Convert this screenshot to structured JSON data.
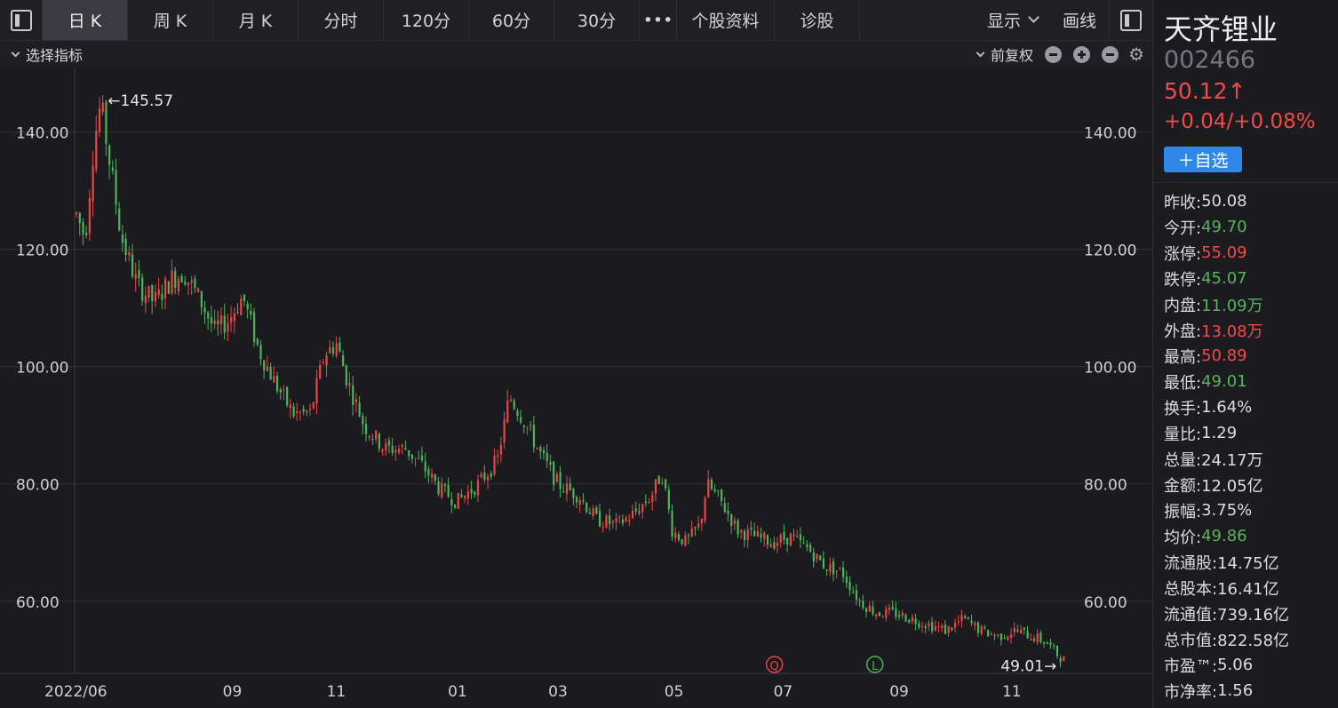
{
  "toolbar": {
    "tabs": [
      {
        "label": "日 K",
        "active": true
      },
      {
        "label": "周 K",
        "active": false
      },
      {
        "label": "月 K",
        "active": false
      },
      {
        "label": "分时",
        "active": false
      },
      {
        "label": "120分",
        "active": false
      },
      {
        "label": "60分",
        "active": false
      },
      {
        "label": "30分",
        "active": false
      },
      {
        "label": "•••",
        "active": false
      },
      {
        "label": "个股资料",
        "active": false
      },
      {
        "label": "诊股",
        "active": false
      }
    ],
    "display_label": "显示",
    "draw_label": "画线"
  },
  "indicator_bar": {
    "select_label": "选择指标",
    "adjust_label": "前复权"
  },
  "stock": {
    "name": "天齐锂业",
    "code": "002466",
    "price": "50.12↑",
    "change": "+0.04/+0.08%",
    "watch_label": "＋自选"
  },
  "info": [
    {
      "label": "昨收:",
      "value": "50.08",
      "tone": "white"
    },
    {
      "label": "今开:",
      "value": "49.70",
      "tone": "green"
    },
    {
      "label": "涨停:",
      "value": "55.09",
      "tone": "red"
    },
    {
      "label": "跌停:",
      "value": "45.07",
      "tone": "green"
    },
    {
      "label": "内盘:",
      "value": "11.09万",
      "tone": "green"
    },
    {
      "label": "外盘:",
      "value": "13.08万",
      "tone": "red"
    },
    {
      "label": "最高:",
      "value": "50.89",
      "tone": "red"
    },
    {
      "label": "最低:",
      "value": "49.01",
      "tone": "green"
    },
    {
      "label": "换手:",
      "value": "1.64%",
      "tone": "white"
    },
    {
      "label": "量比:",
      "value": "1.29",
      "tone": "white"
    },
    {
      "label": "总量:",
      "value": "24.17万",
      "tone": "white"
    },
    {
      "label": "金额:",
      "value": "12.05亿",
      "tone": "white"
    },
    {
      "label": "振幅:",
      "value": "3.75%",
      "tone": "white"
    },
    {
      "label": "均价:",
      "value": "49.86",
      "tone": "green"
    },
    {
      "label": "流通股:",
      "value": "14.75亿",
      "tone": "white"
    },
    {
      "label": "总股本:",
      "value": "16.41亿",
      "tone": "white"
    },
    {
      "label": "流通值:",
      "value": "739.16亿",
      "tone": "white"
    },
    {
      "label": "总市值:",
      "value": "822.58亿",
      "tone": "white"
    },
    {
      "label": "市盈™:",
      "value": "5.06",
      "tone": "white"
    },
    {
      "label": "市净率:",
      "value": "1.56",
      "tone": "white"
    }
  ],
  "colors": {
    "up": "#e84747",
    "down": "#4fb35a",
    "grid": "#2f2f35",
    "axis_text": "#d0d0d4"
  },
  "chart_data": {
    "type": "candlestick",
    "y_ticks": [
      "140.00",
      "120.00",
      "100.00",
      "80.00",
      "60.00"
    ],
    "y_tick_values": [
      140,
      120,
      100,
      80,
      60
    ],
    "ylim": [
      48,
      151
    ],
    "x_ticks": [
      "2022/06",
      "09",
      "11",
      "01",
      "03",
      "05",
      "07",
      "09",
      "11"
    ],
    "x_tick_days": [
      0,
      90,
      150,
      220,
      278,
      345,
      408,
      475,
      540
    ],
    "max_label": "←145.57",
    "max_value": 145.57,
    "max_day": 14,
    "min_label": "49.01→",
    "min_value": 49.01,
    "min_day": 570,
    "markers": [
      {
        "label": "Q",
        "day": 403,
        "color": "#e84747"
      },
      {
        "label": "L",
        "day": 461,
        "color": "#4fb35a"
      }
    ],
    "price_path": [
      [
        0,
        126
      ],
      [
        5,
        122
      ],
      [
        10,
        138
      ],
      [
        14,
        145
      ],
      [
        18,
        137
      ],
      [
        26,
        122
      ],
      [
        35,
        114
      ],
      [
        45,
        111
      ],
      [
        55,
        115
      ],
      [
        62,
        116
      ],
      [
        72,
        111
      ],
      [
        80,
        106
      ],
      [
        88,
        108
      ],
      [
        96,
        112
      ],
      [
        105,
        103
      ],
      [
        115,
        97
      ],
      [
        125,
        92
      ],
      [
        135,
        92
      ],
      [
        143,
        102
      ],
      [
        150,
        104
      ],
      [
        156,
        98
      ],
      [
        166,
        90
      ],
      [
        178,
        86
      ],
      [
        190,
        86
      ],
      [
        200,
        83
      ],
      [
        210,
        79
      ],
      [
        220,
        77
      ],
      [
        232,
        80
      ],
      [
        243,
        84
      ],
      [
        250,
        95
      ],
      [
        258,
        91
      ],
      [
        268,
        85
      ],
      [
        278,
        80
      ],
      [
        290,
        78
      ],
      [
        300,
        74
      ],
      [
        312,
        73
      ],
      [
        322,
        75
      ],
      [
        332,
        78
      ],
      [
        338,
        82
      ],
      [
        344,
        72
      ],
      [
        352,
        70
      ],
      [
        360,
        73
      ],
      [
        364,
        80
      ],
      [
        372,
        77
      ],
      [
        382,
        72
      ],
      [
        392,
        71
      ],
      [
        402,
        70
      ],
      [
        412,
        71
      ],
      [
        422,
        69
      ],
      [
        432,
        66
      ],
      [
        442,
        65
      ],
      [
        452,
        60
      ],
      [
        462,
        58
      ],
      [
        472,
        58
      ],
      [
        482,
        57
      ],
      [
        492,
        56
      ],
      [
        502,
        55
      ],
      [
        512,
        57
      ],
      [
        522,
        55
      ],
      [
        532,
        54
      ],
      [
        542,
        55
      ],
      [
        552,
        54
      ],
      [
        560,
        53
      ],
      [
        566,
        51
      ],
      [
        570,
        50
      ]
    ]
  }
}
